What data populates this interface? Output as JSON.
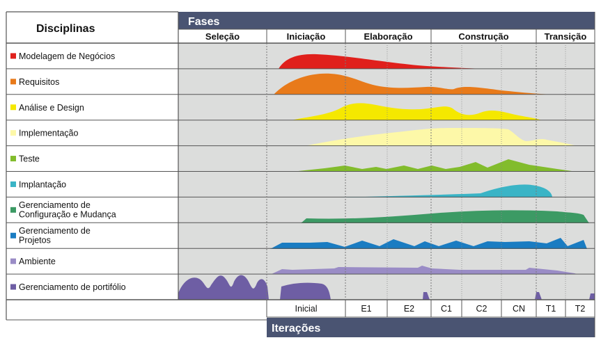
{
  "disciplinas_header": "Disciplinas",
  "fases_header": "Fases",
  "iteracoes_header": "Iterações",
  "phases": [
    "Seleção",
    "Iniciação",
    "Elaboração",
    "Construção",
    "Transição"
  ],
  "iterations": [
    "Inicial",
    "E1",
    "E2",
    "C1",
    "C2",
    "CN",
    "T1",
    "T2"
  ],
  "disciplines": [
    {
      "lines": [
        "Modelagem de Negócios"
      ],
      "color": "#e0201c"
    },
    {
      "lines": [
        "Requisitos"
      ],
      "color": "#e87a1a"
    },
    {
      "lines": [
        "Análise e Design"
      ],
      "color": "#f5e800"
    },
    {
      "lines": [
        "Implementação"
      ],
      "color": "#fdf8a8"
    },
    {
      "lines": [
        "Teste"
      ],
      "color": "#82bc2c"
    },
    {
      "lines": [
        "Implantação"
      ],
      "color": "#3ab4c6"
    },
    {
      "lines": [
        "Gerenciamento de",
        "Configuração e Mudança"
      ],
      "color": "#3c9a64"
    },
    {
      "lines": [
        "Gerenciamento de",
        "Projetos"
      ],
      "color": "#1a7cc2"
    },
    {
      "lines": [
        "Ambiente"
      ],
      "color": "#9a8cc6"
    },
    {
      "lines": [
        "Gerenciamento de portifólio"
      ],
      "color": "#6e5ea4"
    }
  ],
  "colors": {
    "header_bar": "#4a5472",
    "row_background": "#dcdddc",
    "grid_line": "#6a6a6a"
  }
}
